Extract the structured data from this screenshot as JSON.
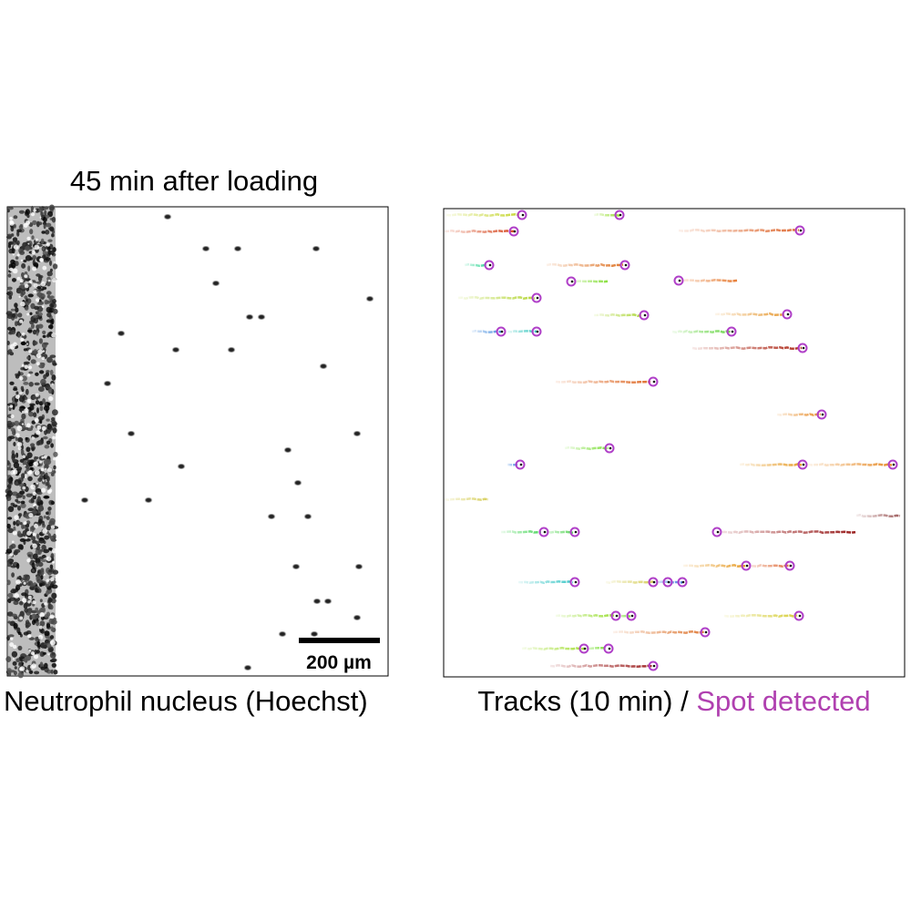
{
  "left_panel": {
    "title": "45 min after loading",
    "caption": "Neutrophil nucleus (Hoechst)",
    "scale_bar_label": "200 µm"
  },
  "right_panel": {
    "caption_prefix": "Tracks (10 min) / ",
    "caption_highlight": "Spot detected",
    "highlight_color": "#b040b0"
  }
}
